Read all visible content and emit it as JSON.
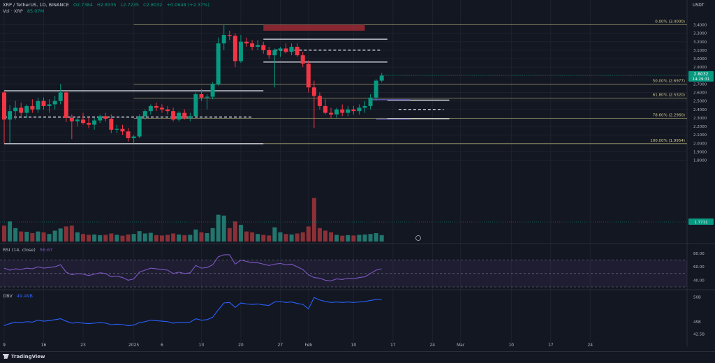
{
  "header": {
    "symbol": "XRP / TetherUS, 1D, BINANCE",
    "open": "O2.7384",
    "high": "H2.8335",
    "low": "L2.7235",
    "close": "C2.8032",
    "change": "+0.0648 (+2.37%)",
    "vol_label": "Vol · XRP",
    "vol_value": "85.07M",
    "vol_stats": "85.07M  +0.0648 (+2.37%)",
    "currency": "USDT"
  },
  "price_axis": {
    "ticks": [
      "3.4000",
      "3.3000",
      "3.2000",
      "3.1000",
      "3.0000",
      "2.9000",
      "2.8000",
      "2.7000",
      "2.6000",
      "2.5000",
      "2.4000",
      "2.3000",
      "2.2000",
      "2.1000",
      "2.0000",
      "1.9000",
      "1.8000"
    ],
    "last_price": "2.8032",
    "countdown": "14:29:31",
    "volume_badge": "1.7711"
  },
  "fib_levels": [
    {
      "label": "0.00% (3.4000)",
      "price": 3.4
    },
    {
      "label": "50.00% (2.6977)",
      "price": 2.6977
    },
    {
      "label": "61.80% (2.5320)",
      "price": 2.532
    },
    {
      "label": "78.60% (2.2960)",
      "price": 2.296
    },
    {
      "label": "100.00% (1.9954)",
      "price": 1.9954
    }
  ],
  "rsi": {
    "title": "RSI (14, close)",
    "value": "56.67",
    "ticks": [
      "80.00",
      "60.00",
      "40.00"
    ]
  },
  "obv": {
    "title": "OBV",
    "value": "49.49B",
    "ticks": [
      "50B",
      "45B",
      "42.5B"
    ]
  },
  "time_axis": [
    {
      "label": "9",
      "i": 0
    },
    {
      "label": "16",
      "i": 7
    },
    {
      "label": "23",
      "i": 14
    },
    {
      "label": "2025",
      "i": 23
    },
    {
      "label": "6",
      "i": 28
    },
    {
      "label": "13",
      "i": 35
    },
    {
      "label": "20",
      "i": 42
    },
    {
      "label": "27",
      "i": 49
    },
    {
      "label": "Feb",
      "i": 54
    },
    {
      "label": "10",
      "i": 62
    },
    {
      "label": "17",
      "i": 69
    },
    {
      "label": "24",
      "i": 76
    },
    {
      "label": "Mar",
      "i": 81
    },
    {
      "label": "10",
      "i": 90
    },
    {
      "label": "17",
      "i": 97
    },
    {
      "label": "24",
      "i": 104
    }
  ],
  "brand": "TradingView",
  "chart_data": {
    "type": "candlestick",
    "candles": [
      {
        "o": 2.6,
        "h": 2.62,
        "l": 2.0,
        "c": 2.28,
        "v": 95
      },
      {
        "o": 2.28,
        "h": 2.45,
        "l": 2.0,
        "c": 2.38,
        "v": 120
      },
      {
        "o": 2.38,
        "h": 2.5,
        "l": 2.28,
        "c": 2.42,
        "v": 80
      },
      {
        "o": 2.42,
        "h": 2.48,
        "l": 2.32,
        "c": 2.36,
        "v": 60
      },
      {
        "o": 2.36,
        "h": 2.46,
        "l": 2.3,
        "c": 2.44,
        "v": 58
      },
      {
        "o": 2.44,
        "h": 2.52,
        "l": 2.36,
        "c": 2.4,
        "v": 50
      },
      {
        "o": 2.4,
        "h": 2.54,
        "l": 2.36,
        "c": 2.5,
        "v": 60
      },
      {
        "o": 2.5,
        "h": 2.54,
        "l": 2.4,
        "c": 2.44,
        "v": 55
      },
      {
        "o": 2.44,
        "h": 2.52,
        "l": 2.36,
        "c": 2.46,
        "v": 45
      },
      {
        "o": 2.46,
        "h": 2.56,
        "l": 2.4,
        "c": 2.5,
        "v": 65
      },
      {
        "o": 2.5,
        "h": 2.7,
        "l": 2.46,
        "c": 2.6,
        "v": 78
      },
      {
        "o": 2.6,
        "h": 2.62,
        "l": 2.25,
        "c": 2.3,
        "v": 90
      },
      {
        "o": 2.3,
        "h": 2.34,
        "l": 2.05,
        "c": 2.26,
        "v": 95
      },
      {
        "o": 2.26,
        "h": 2.32,
        "l": 2.2,
        "c": 2.28,
        "v": 55
      },
      {
        "o": 2.28,
        "h": 2.36,
        "l": 2.22,
        "c": 2.24,
        "v": 45
      },
      {
        "o": 2.24,
        "h": 2.3,
        "l": 2.18,
        "c": 2.22,
        "v": 40
      },
      {
        "o": 2.22,
        "h": 2.3,
        "l": 2.16,
        "c": 2.27,
        "v": 42
      },
      {
        "o": 2.27,
        "h": 2.34,
        "l": 2.24,
        "c": 2.32,
        "v": 38
      },
      {
        "o": 2.32,
        "h": 2.36,
        "l": 2.26,
        "c": 2.29,
        "v": 40
      },
      {
        "o": 2.29,
        "h": 2.34,
        "l": 2.12,
        "c": 2.16,
        "v": 48
      },
      {
        "o": 2.16,
        "h": 2.22,
        "l": 2.12,
        "c": 2.17,
        "v": 40
      },
      {
        "o": 2.17,
        "h": 2.22,
        "l": 2.1,
        "c": 2.14,
        "v": 35
      },
      {
        "o": 2.14,
        "h": 2.18,
        "l": 2.02,
        "c": 2.06,
        "v": 42
      },
      {
        "o": 2.06,
        "h": 2.1,
        "l": 2.0,
        "c": 2.08,
        "v": 45
      },
      {
        "o": 2.08,
        "h": 2.34,
        "l": 2.06,
        "c": 2.32,
        "v": 62
      },
      {
        "o": 2.32,
        "h": 2.4,
        "l": 2.28,
        "c": 2.38,
        "v": 48
      },
      {
        "o": 2.38,
        "h": 2.46,
        "l": 2.34,
        "c": 2.44,
        "v": 52
      },
      {
        "o": 2.44,
        "h": 2.48,
        "l": 2.38,
        "c": 2.42,
        "v": 38
      },
      {
        "o": 2.42,
        "h": 2.46,
        "l": 2.36,
        "c": 2.4,
        "v": 36
      },
      {
        "o": 2.4,
        "h": 2.44,
        "l": 2.34,
        "c": 2.38,
        "v": 40
      },
      {
        "o": 2.38,
        "h": 2.42,
        "l": 2.26,
        "c": 2.28,
        "v": 48
      },
      {
        "o": 2.28,
        "h": 2.38,
        "l": 2.26,
        "c": 2.36,
        "v": 42
      },
      {
        "o": 2.36,
        "h": 2.4,
        "l": 2.28,
        "c": 2.3,
        "v": 38
      },
      {
        "o": 2.3,
        "h": 2.36,
        "l": 2.26,
        "c": 2.32,
        "v": 40
      },
      {
        "o": 2.32,
        "h": 2.6,
        "l": 2.3,
        "c": 2.58,
        "v": 72
      },
      {
        "o": 2.58,
        "h": 2.64,
        "l": 2.5,
        "c": 2.54,
        "v": 55
      },
      {
        "o": 2.54,
        "h": 2.58,
        "l": 2.4,
        "c": 2.55,
        "v": 50
      },
      {
        "o": 2.55,
        "h": 2.72,
        "l": 2.52,
        "c": 2.7,
        "v": 80
      },
      {
        "o": 2.7,
        "h": 3.25,
        "l": 2.68,
        "c": 3.18,
        "v": 160
      },
      {
        "o": 3.18,
        "h": 3.4,
        "l": 3.1,
        "c": 3.28,
        "v": 155
      },
      {
        "o": 3.28,
        "h": 3.33,
        "l": 3.22,
        "c": 3.27,
        "v": 80
      },
      {
        "o": 3.27,
        "h": 3.3,
        "l": 2.9,
        "c": 2.97,
        "v": 120
      },
      {
        "o": 2.97,
        "h": 3.28,
        "l": 2.95,
        "c": 3.2,
        "v": 100
      },
      {
        "o": 3.2,
        "h": 3.25,
        "l": 3.14,
        "c": 3.18,
        "v": 60
      },
      {
        "o": 3.18,
        "h": 3.22,
        "l": 3.1,
        "c": 3.14,
        "v": 55
      },
      {
        "o": 3.14,
        "h": 3.22,
        "l": 3.1,
        "c": 3.16,
        "v": 45
      },
      {
        "o": 3.16,
        "h": 3.2,
        "l": 3.06,
        "c": 3.1,
        "v": 40
      },
      {
        "o": 3.1,
        "h": 3.14,
        "l": 3.0,
        "c": 3.04,
        "v": 36
      },
      {
        "o": 3.04,
        "h": 3.12,
        "l": 2.66,
        "c": 3.1,
        "v": 85
      },
      {
        "o": 3.1,
        "h": 3.14,
        "l": 3.02,
        "c": 3.12,
        "v": 55
      },
      {
        "o": 3.12,
        "h": 3.18,
        "l": 3.06,
        "c": 3.08,
        "v": 45
      },
      {
        "o": 3.08,
        "h": 3.18,
        "l": 3.04,
        "c": 3.14,
        "v": 42
      },
      {
        "o": 3.14,
        "h": 3.18,
        "l": 3.02,
        "c": 3.04,
        "v": 48
      },
      {
        "o": 3.04,
        "h": 3.08,
        "l": 2.9,
        "c": 2.94,
        "v": 55
      },
      {
        "o": 2.94,
        "h": 2.98,
        "l": 2.6,
        "c": 2.66,
        "v": 90
      },
      {
        "o": 2.66,
        "h": 2.74,
        "l": 2.18,
        "c": 2.56,
        "v": 260
      },
      {
        "o": 2.56,
        "h": 2.6,
        "l": 2.4,
        "c": 2.44,
        "v": 80
      },
      {
        "o": 2.44,
        "h": 2.52,
        "l": 2.34,
        "c": 2.36,
        "v": 65
      },
      {
        "o": 2.36,
        "h": 2.42,
        "l": 2.3,
        "c": 2.34,
        "v": 55
      },
      {
        "o": 2.34,
        "h": 2.42,
        "l": 2.3,
        "c": 2.4,
        "v": 40
      },
      {
        "o": 2.4,
        "h": 2.46,
        "l": 2.32,
        "c": 2.36,
        "v": 35
      },
      {
        "o": 2.36,
        "h": 2.44,
        "l": 2.32,
        "c": 2.4,
        "v": 38
      },
      {
        "o": 2.4,
        "h": 2.44,
        "l": 2.34,
        "c": 2.38,
        "v": 36
      },
      {
        "o": 2.38,
        "h": 2.46,
        "l": 2.34,
        "c": 2.42,
        "v": 40
      },
      {
        "o": 2.42,
        "h": 2.5,
        "l": 2.36,
        "c": 2.44,
        "v": 42
      },
      {
        "o": 2.44,
        "h": 2.58,
        "l": 2.4,
        "c": 2.54,
        "v": 45
      },
      {
        "o": 2.54,
        "h": 2.76,
        "l": 2.5,
        "c": 2.74,
        "v": 50
      },
      {
        "o": 2.74,
        "h": 2.83,
        "l": 2.72,
        "c": 2.8,
        "v": 38
      }
    ],
    "rsi_values": [
      58,
      55,
      57,
      56,
      58,
      57,
      60,
      58,
      59,
      60,
      63,
      52,
      48,
      50,
      49,
      47,
      49,
      51,
      50,
      45,
      46,
      44,
      40,
      42,
      52,
      55,
      58,
      57,
      56,
      55,
      50,
      52,
      50,
      51,
      62,
      58,
      59,
      63,
      75,
      78,
      78,
      64,
      70,
      68,
      66,
      66,
      64,
      62,
      64,
      65,
      63,
      64,
      60,
      56,
      48,
      44,
      43,
      40,
      39,
      42,
      41,
      43,
      42,
      44,
      45,
      50,
      55,
      57
    ],
    "obv_values": [
      44.2,
      44.6,
      44.9,
      44.8,
      45.0,
      44.9,
      45.3,
      45.1,
      45.2,
      45.4,
      45.6,
      45.1,
      44.7,
      44.8,
      44.7,
      44.6,
      44.7,
      44.8,
      44.7,
      44.4,
      44.5,
      44.4,
      44.2,
      44.3,
      44.8,
      45.0,
      45.3,
      45.2,
      45.1,
      45.0,
      44.7,
      44.9,
      44.8,
      44.9,
      45.6,
      45.3,
      45.4,
      45.9,
      47.4,
      48.8,
      48.9,
      47.9,
      48.8,
      48.6,
      48.5,
      48.6,
      48.4,
      48.3,
      49.0,
      49.1,
      48.9,
      49.0,
      48.7,
      48.5,
      47.6,
      49.9,
      49.4,
      49.1,
      48.9,
      49.0,
      48.9,
      49.0,
      48.9,
      49.0,
      49.1,
      49.3,
      49.5,
      49.49
    ],
    "overlays": {
      "supply_zone": {
        "i0": 46,
        "i1": 64,
        "top": 3.4,
        "bottom": 3.33
      },
      "range_boxes": [
        {
          "i0": 46,
          "i1": 68,
          "price": 3.23
        },
        {
          "i0": 46,
          "i1": 68,
          "price": 2.96
        },
        {
          "i0": 0,
          "i1": 46,
          "price": 2.62
        },
        {
          "i0": 0,
          "i1": 46,
          "price": 1.995
        },
        {
          "i0": 68,
          "i1": 79,
          "price": 2.51
        },
        {
          "i0": 68,
          "i1": 79,
          "price": 2.29
        }
      ],
      "dashed_lines": [
        {
          "i0": 0,
          "i1": 44,
          "price": 2.31
        },
        {
          "i0": 48,
          "i1": 67,
          "price": 3.1
        },
        {
          "i0": 70,
          "i1": 78,
          "price": 2.4
        }
      ]
    }
  }
}
